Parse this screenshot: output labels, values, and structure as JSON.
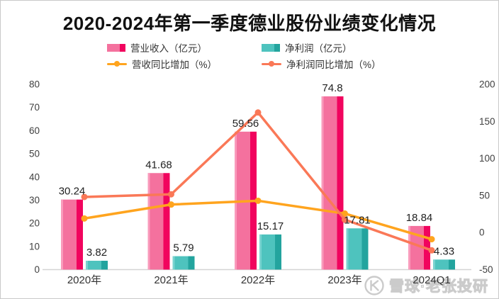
{
  "header": {
    "title": "2020-2024年第一季度德业股份业绩变化情况"
  },
  "legend": {
    "position": "top",
    "items": [
      {
        "label": "营业收入（亿元）",
        "type": "bar",
        "color": "#F4719E",
        "color_dark": "#F1045E"
      },
      {
        "label": "净利润（亿元）",
        "type": "bar",
        "color": "#4EC3BE",
        "color_dark": "#23A49E"
      },
      {
        "label": "营收同比增加（%）",
        "type": "line",
        "color": "#FFA41E"
      },
      {
        "label": "净利润同比增加（%）",
        "type": "line",
        "color": "#FA7857"
      }
    ]
  },
  "chart_data": {
    "type": "bar+line combo",
    "title": "2020-2024年第一季度德业股份业绩变化情况",
    "categories": [
      "2020年",
      "2021年",
      "2022年",
      "2023年",
      "2024Q1"
    ],
    "bar_series": [
      {
        "name": "营业收入（亿元）",
        "axis": "left",
        "values": [
          30.24,
          41.68,
          59.56,
          74.8,
          18.84
        ],
        "color": "#F4719E",
        "color_dark": "#F1045E",
        "color_light_edge": "#FBA9C6"
      },
      {
        "name": "净利润（亿元）",
        "axis": "left",
        "values": [
          3.82,
          5.79,
          15.17,
          17.81,
          4.33
        ],
        "color": "#4EC3BE",
        "color_dark": "#23A49E",
        "color_light_edge": "#7ED5D1"
      }
    ],
    "line_series": [
      {
        "name": "营收同比增加（%）",
        "axis": "right",
        "values": [
          19,
          37.8,
          42.9,
          25.6,
          -9
        ],
        "values_estimated_from_gridlines": true,
        "color": "#FFA41E"
      },
      {
        "name": "净利润同比增加（%）",
        "axis": "right",
        "values": [
          48,
          51.6,
          162,
          17.4,
          -24
        ],
        "values_estimated_from_gridlines": true,
        "color": "#FA7857"
      }
    ],
    "left_axis": {
      "min": 0,
      "max": 80,
      "step": 10,
      "ticks": [
        0,
        10,
        20,
        30,
        40,
        50,
        60,
        70,
        80
      ]
    },
    "right_axis": {
      "min": -50,
      "max": 200,
      "step": 50,
      "ticks": [
        -50,
        0,
        50,
        100,
        150,
        200
      ]
    },
    "grid": false,
    "data_labels_on_bars": true,
    "colors": {
      "axis_line": "#d4d4d4",
      "tick_text": "#404040",
      "label_text": "#222222"
    }
  },
  "watermark": {
    "logo": "xueqiu-snowball-logo",
    "text": "雪球·老张投研"
  }
}
